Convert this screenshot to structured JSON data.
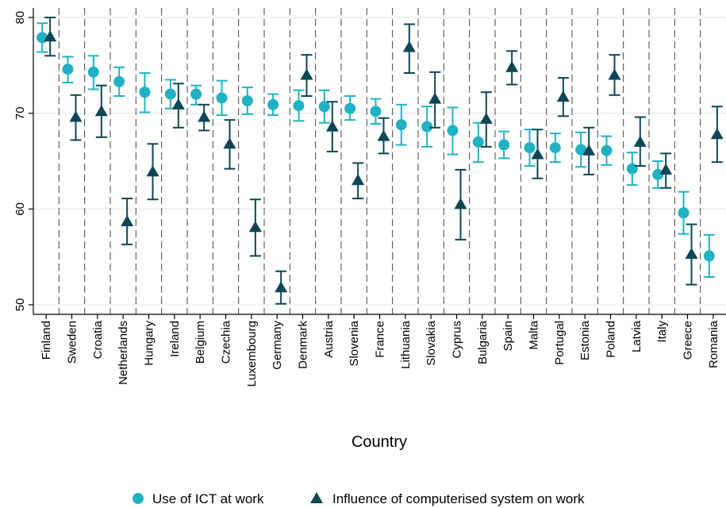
{
  "chart_data": {
    "type": "scatter",
    "xlabel": "Country",
    "ylabel": "",
    "ylim": [
      49,
      81
    ],
    "yticks": [
      50,
      60,
      70,
      80
    ],
    "grid": true,
    "legend_position": "bottom",
    "categories": [
      "Finland",
      "Sweden",
      "Croatia",
      "Netherlands",
      "Hungary",
      "Ireland",
      "Belgium",
      "Czechia",
      "Luxembourg",
      "Germany",
      "Denmark",
      "Austria",
      "Slovenia",
      "France",
      "Lithuania",
      "Slovakia",
      "Cyprus",
      "Bulgaria",
      "Spain",
      "Malta",
      "Portugal",
      "Estonia",
      "Poland",
      "Latvia",
      "Italy",
      "Greece",
      "Romania"
    ],
    "series": [
      {
        "name": "Use of ICT at work",
        "marker": "circle",
        "color": "#20b2c4",
        "values": [
          77.9,
          74.6,
          74.3,
          73.3,
          72.2,
          72.0,
          72.0,
          71.6,
          71.3,
          70.9,
          70.8,
          70.7,
          70.5,
          70.2,
          68.8,
          68.6,
          68.2,
          67.0,
          66.7,
          66.4,
          66.4,
          66.2,
          66.1,
          64.2,
          63.6,
          59.6,
          55.1
        ],
        "lower": [
          76.4,
          73.2,
          72.5,
          71.8,
          70.1,
          70.5,
          70.9,
          69.8,
          69.9,
          69.8,
          69.2,
          69.0,
          69.3,
          68.9,
          66.7,
          66.5,
          65.7,
          64.9,
          65.3,
          64.5,
          64.9,
          64.4,
          64.6,
          62.5,
          62.2,
          57.4,
          52.9
        ],
        "upper": [
          79.4,
          75.9,
          76.0,
          74.8,
          74.2,
          73.5,
          72.9,
          73.4,
          72.7,
          72.0,
          72.4,
          72.4,
          71.8,
          71.5,
          70.9,
          70.7,
          70.6,
          69.0,
          68.1,
          68.3,
          67.9,
          68.0,
          67.6,
          65.9,
          65.0,
          61.8,
          57.3
        ]
      },
      {
        "name": "Influence of computerised system on work",
        "marker": "triangle",
        "color": "#0d4654",
        "values": [
          78.0,
          69.6,
          70.2,
          58.7,
          63.9,
          70.9,
          69.6,
          66.8,
          58.1,
          51.8,
          74.0,
          68.6,
          63.0,
          67.6,
          76.9,
          71.5,
          60.5,
          69.4,
          74.8,
          65.7,
          71.7,
          66.1,
          74.0,
          67.0,
          64.1,
          55.3,
          67.8
        ],
        "lower": [
          76.0,
          67.2,
          67.5,
          56.3,
          61.0,
          68.5,
          68.2,
          64.2,
          55.1,
          50.1,
          71.8,
          66.0,
          61.1,
          65.8,
          74.2,
          68.5,
          56.8,
          66.5,
          73.0,
          63.2,
          69.7,
          63.6,
          71.9,
          64.5,
          62.2,
          52.1,
          64.9
        ],
        "upper": [
          80.0,
          71.9,
          72.9,
          61.1,
          66.8,
          73.1,
          70.9,
          69.3,
          61.0,
          53.5,
          76.1,
          71.2,
          64.8,
          69.5,
          79.3,
          74.3,
          64.1,
          72.2,
          76.5,
          68.3,
          73.7,
          68.5,
          76.1,
          69.6,
          65.8,
          58.4,
          70.7
        ]
      }
    ]
  }
}
